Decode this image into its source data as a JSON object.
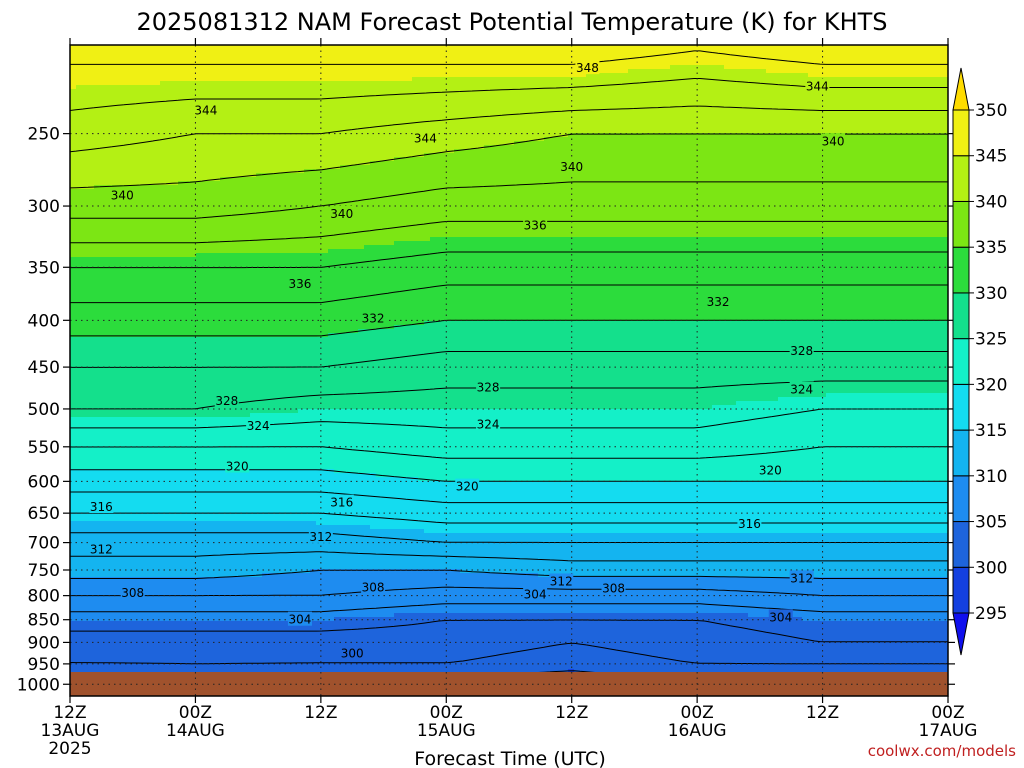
{
  "chart_data": {
    "type": "heatmap",
    "title": "2025081312 NAM Forecast Potential Temperature (K) for KHTS",
    "xlabel": "Forecast Time (UTC)",
    "ylabel": "",
    "credit": "coolwx.com/models",
    "y_axis": {
      "scale": "log-pressure",
      "ylim": [
        1030,
        200
      ],
      "ticks": [
        250,
        300,
        350,
        400,
        450,
        500,
        550,
        600,
        650,
        700,
        750,
        800,
        850,
        900,
        950,
        1000
      ],
      "tick_labels": [
        "250",
        "300",
        "350",
        "400",
        "450",
        "500",
        "550",
        "600",
        "650",
        "700",
        "750",
        "800",
        "850",
        "900",
        "950",
        "1000"
      ]
    },
    "x_axis": {
      "range_hours": [
        0,
        84
      ],
      "ticks": [
        0,
        12,
        24,
        36,
        48,
        60,
        72,
        84
      ],
      "tick_labels": [
        [
          "12Z",
          "13AUG",
          "2025"
        ],
        [
          "00Z",
          "14AUG"
        ],
        [
          "12Z"
        ],
        [
          "00Z",
          "15AUG"
        ],
        [
          "12Z"
        ],
        [
          "00Z",
          "16AUG"
        ],
        [
          "12Z"
        ],
        [
          "00Z",
          "17AUG"
        ]
      ]
    },
    "grid": true,
    "colorbar": {
      "levels": [
        295,
        300,
        305,
        310,
        315,
        320,
        325,
        330,
        335,
        340,
        345,
        350
      ],
      "colors": [
        "#1010ee",
        "#1440e0",
        "#1e64dc",
        "#1e8cf0",
        "#14b4f0",
        "#14dcf0",
        "#14f0c8",
        "#14e08c",
        "#2cdc3c",
        "#7ce614",
        "#b4f014",
        "#f0f014",
        "#ffdc00"
      ]
    },
    "ground_color": "#a0522d",
    "profile_times": [
      0,
      12,
      24,
      36,
      48,
      60,
      72,
      84
    ],
    "profile_pressures": [
      1000,
      950,
      900,
      850,
      800,
      750,
      700,
      650,
      600,
      550,
      500,
      450,
      400,
      350,
      300,
      250,
      210
    ],
    "profiles": [
      [
        298,
        302,
        303,
        305,
        308,
        311,
        313,
        316,
        319,
        322,
        326,
        328,
        331,
        334,
        339,
        343,
        346
      ],
      [
        301,
        302,
        303,
        305,
        308,
        311,
        313,
        316,
        319,
        322,
        326,
        328,
        331,
        334,
        339,
        342,
        346
      ],
      [
        299,
        302,
        303,
        305,
        308,
        310,
        313,
        316,
        319,
        322,
        325,
        328,
        331,
        334,
        338,
        342,
        346
      ],
      [
        299,
        302,
        303,
        304,
        307,
        310,
        314,
        317,
        320,
        323,
        325,
        327,
        330,
        333,
        337,
        341,
        346
      ],
      [
        298,
        301,
        302,
        304,
        307,
        311,
        314,
        317,
        320,
        323,
        325,
        327,
        330,
        333,
        337,
        340,
        346
      ],
      [
        300,
        302,
        303,
        304,
        307,
        311,
        314,
        317,
        320,
        323,
        325,
        327,
        330,
        333,
        337,
        340,
        345
      ],
      [
        300,
        302,
        304,
        305,
        308,
        311,
        314,
        317,
        320,
        322,
        324,
        327,
        330,
        333,
        337,
        340,
        346
      ],
      [
        300,
        302,
        304,
        305,
        308,
        311,
        314,
        317,
        320,
        322,
        324,
        327,
        330,
        333,
        337,
        340,
        346
      ]
    ],
    "contour_labels": [
      {
        "value": "348",
        "t": 49.5,
        "p": 212
      },
      {
        "value": "344",
        "t": 71.5,
        "p": 222
      },
      {
        "value": "344",
        "t": 13,
        "p": 236
      },
      {
        "value": "344",
        "t": 34,
        "p": 253
      },
      {
        "value": "340",
        "t": 73,
        "p": 255
      },
      {
        "value": "340",
        "t": 48,
        "p": 272
      },
      {
        "value": "340",
        "t": 5,
        "p": 292
      },
      {
        "value": "340",
        "t": 26,
        "p": 306
      },
      {
        "value": "336",
        "t": 44.5,
        "p": 315
      },
      {
        "value": "336",
        "t": 22,
        "p": 365
      },
      {
        "value": "332",
        "t": 29,
        "p": 398
      },
      {
        "value": "332",
        "t": 62,
        "p": 382
      },
      {
        "value": "328",
        "t": 70,
        "p": 432
      },
      {
        "value": "328",
        "t": 40,
        "p": 474
      },
      {
        "value": "328",
        "t": 15,
        "p": 490
      },
      {
        "value": "324",
        "t": 70,
        "p": 476
      },
      {
        "value": "324",
        "t": 18,
        "p": 522
      },
      {
        "value": "324",
        "t": 40,
        "p": 520
      },
      {
        "value": "320",
        "t": 16,
        "p": 578
      },
      {
        "value": "320",
        "t": 38,
        "p": 608
      },
      {
        "value": "320",
        "t": 67,
        "p": 584
      },
      {
        "value": "316",
        "t": 3,
        "p": 640
      },
      {
        "value": "316",
        "t": 26,
        "p": 633
      },
      {
        "value": "316",
        "t": 65,
        "p": 668
      },
      {
        "value": "312",
        "t": 3,
        "p": 712
      },
      {
        "value": "312",
        "t": 24,
        "p": 690
      },
      {
        "value": "312",
        "t": 47,
        "p": 772
      },
      {
        "value": "312",
        "t": 70,
        "p": 766
      },
      {
        "value": "308",
        "t": 6,
        "p": 795
      },
      {
        "value": "308",
        "t": 29,
        "p": 784
      },
      {
        "value": "308",
        "t": 52,
        "p": 786
      },
      {
        "value": "304",
        "t": 44.5,
        "p": 798
      },
      {
        "value": "304",
        "t": 22,
        "p": 850
      },
      {
        "value": "304",
        "t": 68,
        "p": 845
      },
      {
        "value": "300",
        "t": 27,
        "p": 926
      }
    ]
  }
}
